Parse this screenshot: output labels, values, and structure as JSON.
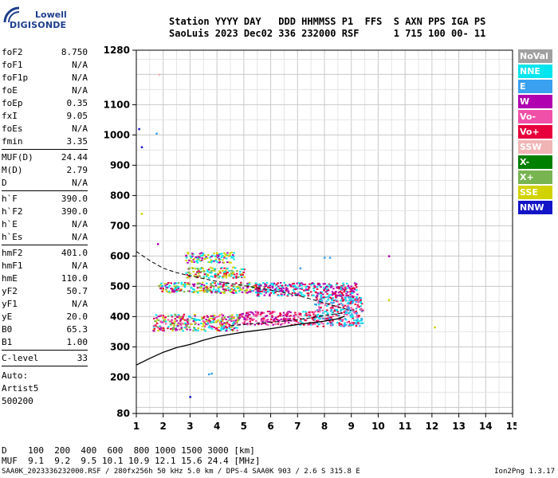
{
  "logo": {
    "line1": "Lowell",
    "line2": "DIGISONDE"
  },
  "header": {
    "line1": "Station YYYY DAY   DDD HHMMSS P1  FFS  S AXN PPS IGA PS",
    "line2": "SaoLuis 2023 Dec02 336 232000 RSF      1 715 100 00- 11"
  },
  "params": {
    "group1": [
      {
        "name": "foF2",
        "value": "8.750"
      },
      {
        "name": "foF1",
        "value": "N/A"
      },
      {
        "name": "foF1p",
        "value": "N/A"
      },
      {
        "name": "foE",
        "value": "N/A"
      },
      {
        "name": "foEp",
        "value": "0.35"
      },
      {
        "name": "fxI",
        "value": "9.05"
      },
      {
        "name": "foEs",
        "value": "N/A"
      },
      {
        "name": "fmin",
        "value": "3.35"
      }
    ],
    "group2": [
      {
        "name": "MUF(D)",
        "value": "24.44"
      },
      {
        "name": "M(D)",
        "value": "2.79"
      },
      {
        "name": "D",
        "value": "N/A"
      }
    ],
    "group3": [
      {
        "name": "h`F",
        "value": "390.0"
      },
      {
        "name": "h`F2",
        "value": "390.0"
      },
      {
        "name": "h`E",
        "value": "N/A"
      },
      {
        "name": "h`Es",
        "value": "N/A"
      }
    ],
    "group4": [
      {
        "name": "hmF2",
        "value": "401.0"
      },
      {
        "name": "hmF1",
        "value": "N/A"
      },
      {
        "name": "hmE",
        "value": "110.0"
      },
      {
        "name": "yF2",
        "value": "50.7"
      },
      {
        "name": "yF1",
        "value": "N/A"
      },
      {
        "name": "yE",
        "value": "20.0"
      },
      {
        "name": "B0",
        "value": "65.3"
      },
      {
        "name": "B1",
        "value": "1.00"
      }
    ],
    "group5": [
      {
        "name": "C-level",
        "value": "33"
      }
    ],
    "auto": [
      "Auto:",
      "Artist5",
      "500200"
    ]
  },
  "legend": [
    {
      "label": "NoVal",
      "color": "#a0a0a0"
    },
    {
      "label": "NNE",
      "color": "#00e5ee"
    },
    {
      "label": "E",
      "color": "#3aa0f0"
    },
    {
      "label": "W",
      "color": "#b000b0"
    },
    {
      "label": "Vo-",
      "color": "#f050a8"
    },
    {
      "label": "Vo+",
      "color": "#e8003c"
    },
    {
      "label": "SSW",
      "color": "#f0b4b4"
    },
    {
      "label": "X-",
      "color": "#008000"
    },
    {
      "label": "X+",
      "color": "#78b450"
    },
    {
      "label": "SSE",
      "color": "#d2d200"
    },
    {
      "label": "NNW",
      "color": "#1414c8"
    }
  ],
  "footer": {
    "line1": "D    100  200  400  600  800 1000 1500 3000 [km]",
    "line2": "MUF  9.1  9.2  9.5 10.1 10.9 12.1 15.6 24.4 [MHz]",
    "bottom": "SAA0K_2023336232000.RSF / 280fx256h 50 kHz 5.0 km / DPS-4 SAA0K 903 / 2.6 S 315.8 E",
    "version": "Ion2Png 1.3.17"
  },
  "chart_data": {
    "type": "scatter",
    "xlim": [
      1,
      15
    ],
    "ylim": [
      80,
      1280
    ],
    "x_ticks": [
      1,
      2,
      3,
      4,
      5,
      6,
      7,
      8,
      9,
      10,
      11,
      12,
      13,
      14,
      15
    ],
    "y_ticks": [
      80,
      200,
      300,
      400,
      500,
      600,
      700,
      800,
      900,
      1000,
      1100,
      1280
    ],
    "grid": true,
    "clusters": [
      {
        "name": "F-trace low band",
        "x": [
          1.6,
          4.8
        ],
        "y": [
          355,
          410
        ],
        "dominant": [
          "W",
          "Vo+",
          "Vo-",
          "NNE",
          "X+",
          "SSE"
        ]
      },
      {
        "name": "F-trace band",
        "x": [
          4.8,
          7.0
        ],
        "y": [
          375,
          420
        ],
        "dominant": [
          "W",
          "Vo+",
          "Vo-"
        ]
      },
      {
        "name": "F-trace band 2",
        "x": [
          7.0,
          7.6
        ],
        "y": [
          375,
          420
        ],
        "dominant": [
          "Vo+",
          "Vo-",
          "NNE"
        ]
      },
      {
        "name": "foF2 cusp",
        "x": [
          7.6,
          9.4
        ],
        "y": [
          370,
          470
        ],
        "dominant": [
          "Vo+",
          "Vo-",
          "NNE",
          "E"
        ]
      },
      {
        "name": "Spread band 500 km",
        "x": [
          1.8,
          5.6
        ],
        "y": [
          480,
          515
        ],
        "dominant": [
          "SSE",
          "W",
          "Vo+",
          "X+",
          "NNE"
        ]
      },
      {
        "name": "Spread band 550 km",
        "x": [
          2.8,
          5.0
        ],
        "y": [
          530,
          565
        ],
        "dominant": [
          "SSE",
          "X+",
          "Vo+",
          "NNE"
        ]
      },
      {
        "name": "Spread band 600 km",
        "x": [
          2.8,
          4.6
        ],
        "y": [
          580,
          615
        ],
        "dominant": [
          "SSE",
          "W",
          "NNE"
        ]
      },
      {
        "name": "Multi-hop band 500 km",
        "x": [
          5.4,
          9.2
        ],
        "y": [
          470,
          515
        ],
        "dominant": [
          "Vo+",
          "NNE",
          "W"
        ]
      }
    ],
    "isolated_points": [
      {
        "x": 1.1,
        "y": 1020,
        "dir": "NNW"
      },
      {
        "x": 1.2,
        "y": 960,
        "dir": "NNW"
      },
      {
        "x": 1.75,
        "y": 1005,
        "dir": "E"
      },
      {
        "x": 1.2,
        "y": 740,
        "dir": "SSE"
      },
      {
        "x": 1.8,
        "y": 640,
        "dir": "W"
      },
      {
        "x": 1.85,
        "y": 1200,
        "dir": "SSW"
      },
      {
        "x": 3.0,
        "y": 135,
        "dir": "NNW"
      },
      {
        "x": 3.7,
        "y": 210,
        "dir": "E"
      },
      {
        "x": 3.8,
        "y": 212,
        "dir": "E"
      },
      {
        "x": 10.4,
        "y": 600,
        "dir": "W"
      },
      {
        "x": 10.4,
        "y": 455,
        "dir": "SSE"
      },
      {
        "x": 12.1,
        "y": 365,
        "dir": "SSE"
      },
      {
        "x": 7.1,
        "y": 560,
        "dir": "E"
      },
      {
        "x": 8.0,
        "y": 595,
        "dir": "E"
      },
      {
        "x": 8.2,
        "y": 595,
        "dir": "E"
      }
    ],
    "profile_curve": {
      "name": "true-height profile",
      "points": [
        [
          1,
          240
        ],
        [
          1.5,
          262
        ],
        [
          2,
          282
        ],
        [
          2.5,
          298
        ],
        [
          3,
          308
        ],
        [
          3.5,
          322
        ],
        [
          4,
          334
        ],
        [
          5,
          349
        ],
        [
          6,
          360
        ],
        [
          7,
          374
        ],
        [
          8,
          385
        ],
        [
          8.5,
          393
        ],
        [
          8.75,
          401
        ]
      ]
    },
    "dashed_curve": {
      "name": "x-trace model",
      "points": [
        [
          1,
          615
        ],
        [
          1.5,
          585
        ],
        [
          2,
          560
        ],
        [
          2.5,
          545
        ],
        [
          3,
          535
        ],
        [
          4,
          516
        ],
        [
          5,
          502
        ],
        [
          6,
          488
        ],
        [
          7,
          470
        ],
        [
          7.5,
          458
        ],
        [
          8,
          445
        ],
        [
          8.5,
          432
        ],
        [
          9.0,
          420
        ]
      ]
    },
    "dashed_curve2": {
      "name": "lower model",
      "points": [
        [
          4.5,
          370
        ],
        [
          5.5,
          378
        ],
        [
          6.5,
          385
        ],
        [
          7,
          390
        ],
        [
          7.5,
          396
        ],
        [
          8,
          404
        ],
        [
          8.5,
          410
        ],
        [
          8.75,
          413
        ]
      ]
    }
  }
}
